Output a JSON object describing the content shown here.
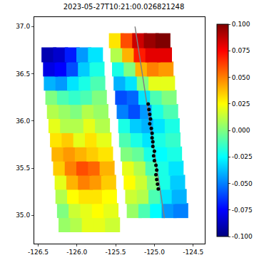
{
  "chart_data": {
    "type": "scatter",
    "title": "2023-05-27T10:21:00.026821248",
    "xlim": [
      -126.55,
      -124.35
    ],
    "ylim": [
      34.7,
      37.1
    ],
    "xticks": [
      -126.5,
      {
        "value": -126.0,
        "label": "-126.0"
      },
      -125.5,
      {
        "value": -125.0,
        "label": "-125.0"
      },
      -124.5
    ],
    "yticks": [
      {
        "value": 35.0,
        "label": "35.0"
      },
      35.5,
      {
        "value": 36.0,
        "label": "36.0"
      },
      36.5,
      {
        "value": 37.0,
        "label": "37.0"
      }
    ],
    "swaths": [
      {
        "lat": [
          34.9,
          35.05,
          35.2,
          35.35,
          35.5,
          35.65,
          35.8,
          35.95,
          36.1,
          36.25,
          36.4,
          36.55,
          36.7
        ],
        "lon": [
          [
            -126.14,
            -125.99,
            -125.84,
            -125.69,
            -125.54
          ],
          [
            -126.16,
            -126.01,
            -125.86,
            -125.71,
            -125.56
          ],
          [
            -126.18,
            -126.03,
            -125.88,
            -125.73,
            -125.58
          ],
          [
            -126.19,
            -126.04,
            -125.89,
            -125.74,
            -125.59
          ],
          [
            -126.21,
            -126.06,
            -125.91,
            -125.76,
            -125.61
          ],
          [
            -126.23,
            -126.08,
            -125.93,
            -125.78,
            -125.63
          ],
          [
            -126.25,
            -126.1,
            -125.95,
            -125.8,
            -125.65
          ],
          [
            -126.27,
            -126.12,
            -125.97,
            -125.82,
            -125.67
          ],
          [
            -126.29,
            -126.14,
            -125.99,
            -125.84,
            -125.69
          ],
          [
            -126.31,
            -126.16,
            -126.01,
            -125.86,
            -125.71
          ],
          [
            -126.33,
            -126.18,
            -126.03,
            -125.88,
            -125.73
          ],
          [
            -126.34,
            -126.19,
            -126.04,
            -125.89,
            -125.74
          ],
          [
            -126.36,
            -126.21,
            -126.06,
            -125.91,
            -125.76
          ]
        ],
        "values": [
          [
            0.005,
            0.01,
            0.02,
            0.02,
            0.015
          ],
          [
            0.0,
            0.015,
            0.02,
            0.025,
            0.02
          ],
          [
            0.01,
            0.025,
            0.03,
            0.03,
            0.025
          ],
          [
            0.02,
            0.04,
            0.05,
            0.045,
            0.035
          ],
          [
            0.035,
            0.05,
            0.06,
            0.055,
            0.04
          ],
          [
            0.04,
            0.045,
            0.04,
            0.035,
            0.03
          ],
          [
            0.03,
            0.035,
            0.02,
            0.03,
            0.02
          ],
          [
            0.02,
            0.01,
            0.01,
            0.02,
            0.01
          ],
          [
            0.01,
            0.005,
            0.0,
            0.01,
            0.005
          ],
          [
            0.0,
            -0.01,
            -0.015,
            -0.01,
            0.0
          ],
          [
            -0.04,
            -0.045,
            -0.03,
            -0.02,
            -0.01
          ],
          [
            -0.08,
            -0.075,
            -0.06,
            -0.035,
            -0.02
          ],
          [
            -0.09,
            -0.085,
            -0.07,
            -0.045,
            -0.03
          ]
        ]
      },
      {
        "lat": [
          35.05,
          35.2,
          35.35,
          35.5,
          35.65,
          35.8,
          35.95,
          36.1,
          36.25,
          36.4,
          36.55,
          36.7,
          36.85
        ],
        "lon": [
          [
            -125.26,
            -125.11,
            -124.96,
            -124.81,
            -124.66
          ],
          [
            -125.28,
            -125.13,
            -124.98,
            -124.83,
            -124.68
          ],
          [
            -125.3,
            -125.15,
            -125.0,
            -124.85,
            -124.7
          ],
          [
            -125.32,
            -125.17,
            -125.02,
            -124.87,
            -124.72
          ],
          [
            -125.34,
            -125.19,
            -125.04,
            -124.89,
            -124.74
          ],
          [
            -125.36,
            -125.21,
            -125.06,
            -124.91,
            -124.76
          ],
          [
            -125.37,
            -125.22,
            -125.07,
            -124.92,
            -124.77
          ],
          [
            -125.39,
            -125.24,
            -125.09,
            -124.94,
            -124.79
          ],
          [
            -125.41,
            -125.26,
            -125.11,
            -124.96,
            -124.81
          ],
          [
            -125.43,
            -125.28,
            -125.13,
            -124.98,
            -124.83
          ],
          [
            -125.45,
            -125.3,
            -125.15,
            -125.0,
            -124.85
          ],
          [
            -125.47,
            -125.32,
            -125.17,
            -125.02,
            -124.87
          ],
          [
            -125.49,
            -125.34,
            -125.19,
            -125.04,
            -124.89
          ]
        ],
        "values": [
          [
            0.005,
            -0.01,
            -0.025,
            -0.045,
            -0.05
          ],
          [
            0.015,
            0.01,
            -0.01,
            -0.03,
            -0.04
          ],
          [
            0.025,
            0.015,
            0.0,
            -0.02,
            -0.035
          ],
          [
            0.02,
            0.01,
            -0.01,
            -0.02,
            -0.03
          ],
          [
            0.0,
            -0.005,
            -0.02,
            -0.025,
            -0.02
          ],
          [
            -0.01,
            -0.02,
            -0.03,
            -0.02,
            -0.015
          ],
          [
            -0.02,
            -0.035,
            -0.04,
            -0.03,
            -0.02
          ],
          [
            -0.05,
            -0.06,
            -0.045,
            -0.02,
            -0.01
          ],
          [
            -0.06,
            -0.055,
            -0.03,
            -0.01,
            0.0
          ],
          [
            -0.04,
            -0.03,
            0.0,
            0.02,
            0.02
          ],
          [
            -0.02,
            0.0,
            0.04,
            0.05,
            0.045
          ],
          [
            0.01,
            0.04,
            0.07,
            0.08,
            0.08
          ],
          [
            0.03,
            0.06,
            0.085,
            0.095,
            0.1
          ]
        ]
      }
    ],
    "series": [
      {
        "type": "line",
        "color": "gray",
        "x": [
          -125.25,
          -124.87
        ],
        "y": [
          37.0,
          34.97
        ]
      },
      {
        "type": "scatter",
        "color": "black",
        "x": [
          -125.08,
          -125.07,
          -125.06,
          -125.05,
          -125.06,
          -125.04,
          -125.03,
          -125.03,
          -125.02,
          -125.02,
          -125.0,
          -125.01,
          -125.0,
          -124.98,
          -124.97,
          -124.98,
          -124.97,
          -124.96,
          -124.95
        ],
        "y": [
          36.18,
          36.12,
          36.07,
          36.02,
          35.97,
          35.92,
          35.87,
          35.82,
          35.78,
          35.73,
          35.68,
          35.63,
          35.58,
          35.53,
          35.48,
          35.43,
          35.38,
          35.33,
          35.28
        ]
      }
    ],
    "colorbar": {
      "range": [
        -0.1,
        0.1
      ],
      "ticks": [
        {
          "value": -0.1,
          "label": "-0.100"
        },
        {
          "value": -0.075,
          "label": "-0.075"
        },
        {
          "value": -0.05,
          "label": "-0.050"
        },
        {
          "value": -0.025,
          "label": "-0.025"
        },
        {
          "value": 0,
          "label": "0.000"
        },
        {
          "value": 0.025,
          "label": "0.025"
        },
        {
          "value": 0.05,
          "label": "0.050"
        },
        {
          "value": 0.075,
          "label": "0.075"
        },
        {
          "value": 0.1,
          "label": "0.100"
        }
      ]
    }
  }
}
